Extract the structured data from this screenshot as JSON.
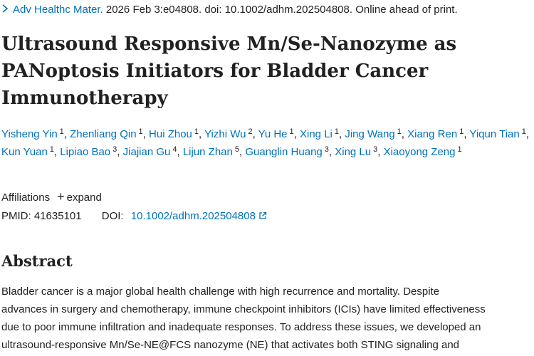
{
  "citation": {
    "chevron_icon": "chevron-right-icon",
    "journal": "Adv Healthc Mater.",
    "details": "2026 Feb 3:e04808. doi: 10.1002/adhm.202504808. Online ahead of print."
  },
  "title": {
    "line1": "Ultrasound Responsive Mn/Se-Nanozyme as",
    "line2": "PANoptosis Initiators for Bladder Cancer",
    "line3": "Immunotherapy"
  },
  "authors": [
    {
      "name": "Yisheng Yin",
      "aff": "1"
    },
    {
      "name": "Zhenliang Qin",
      "aff": "1"
    },
    {
      "name": "Hui Zhou",
      "aff": "1"
    },
    {
      "name": "Yizhi Wu",
      "aff": "2"
    },
    {
      "name": "Yu He",
      "aff": "1"
    },
    {
      "name": "Xing Li",
      "aff": "1"
    },
    {
      "name": "Jing Wang",
      "aff": "1"
    },
    {
      "name": "Xiang Ren",
      "aff": "1"
    },
    {
      "name": "Yiqun Tian",
      "aff": "1"
    },
    {
      "name": "Kun Yuan",
      "aff": "1"
    },
    {
      "name": "Lipiao Bao",
      "aff": "3"
    },
    {
      "name": "Jiajian Gu",
      "aff": "4"
    },
    {
      "name": "Lijun Zhan",
      "aff": "5"
    },
    {
      "name": "Guanglin Huang",
      "aff": "3"
    },
    {
      "name": "Xing Lu",
      "aff": "3"
    },
    {
      "name": "Xiaoyong Zeng",
      "aff": "1"
    }
  ],
  "affiliations": {
    "label": "Affiliations",
    "toggle_icon": "plus-icon",
    "toggle_label": "expand"
  },
  "identifiers": {
    "pmid_label": "PMID:",
    "pmid": "41635101",
    "doi_label": "DOI:",
    "doi": "10.1002/adhm.202504808",
    "doi_icon": "external-link-icon"
  },
  "abstract": {
    "heading": "Abstract",
    "line1": "Bladder cancer is a major global health challenge with high recurrence and mortality. Despite",
    "line2": "advances in surgery and chemotherapy, immune checkpoint inhibitors (ICIs) have limited effectiveness",
    "line3": "due to poor immune infiltration and inadequate responses. To address these issues, we developed an",
    "line4": "ultrasound-responsive Mn/Se-NE@FCS nanozyme (NE) that activates both STING signaling and"
  },
  "colors": {
    "link": "#0071bc",
    "text": "#212121"
  }
}
